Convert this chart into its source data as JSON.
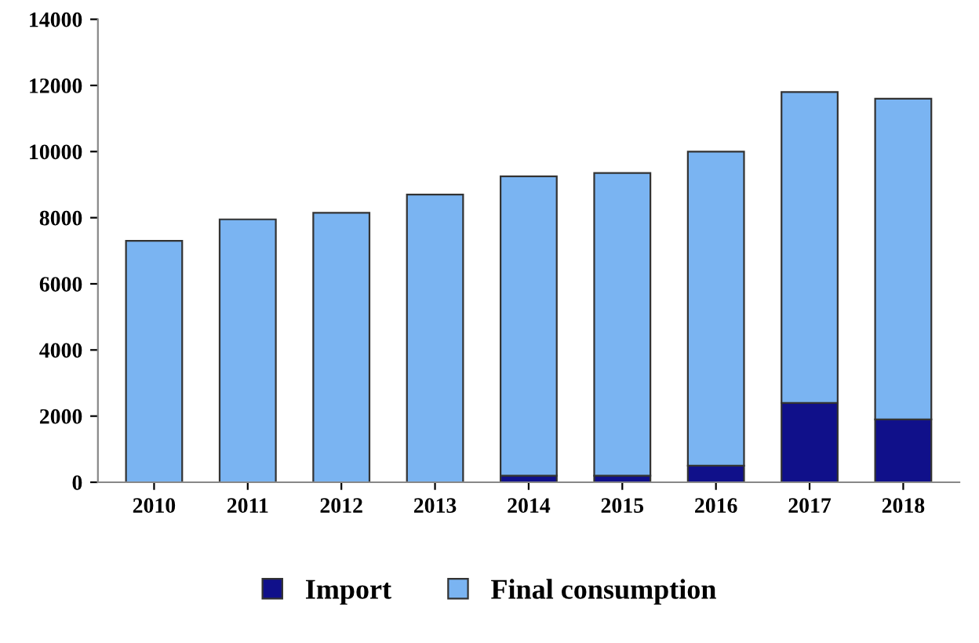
{
  "chart_data": {
    "type": "bar",
    "stacked": true,
    "categories": [
      "2010",
      "2011",
      "2012",
      "2013",
      "2014",
      "2015",
      "2016",
      "2017",
      "2018"
    ],
    "series": [
      {
        "name": "Import",
        "color": "#10108a",
        "values": [
          0,
          0,
          0,
          0,
          200,
          200,
          500,
          2400,
          1900
        ]
      },
      {
        "name": "Final consumption",
        "color": "#7ab4f2",
        "values": [
          7300,
          7950,
          8150,
          8700,
          9050,
          9150,
          9500,
          9400,
          9700
        ]
      }
    ],
    "ylim": [
      0,
      14000
    ],
    "yticks": [
      0,
      2000,
      4000,
      6000,
      8000,
      10000,
      12000,
      14000
    ],
    "grid": false,
    "legend": "bottom"
  }
}
